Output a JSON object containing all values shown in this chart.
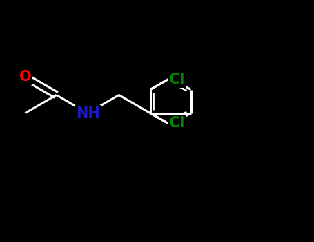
{
  "background_color": "#000000",
  "bond_color": "#ffffff",
  "bond_lw": 2.2,
  "O_color": "#ff0000",
  "N_color": "#1a1acc",
  "Cl_color": "#008800",
  "label_O": "O",
  "label_NH": "NH",
  "label_Cl1": "Cl",
  "label_Cl2": "Cl",
  "label_fontsize": 15,
  "figsize": [
    4.55,
    3.5
  ],
  "dpi": 100,
  "xlim": [
    0,
    10
  ],
  "ylim": [
    -3.5,
    3.0
  ]
}
